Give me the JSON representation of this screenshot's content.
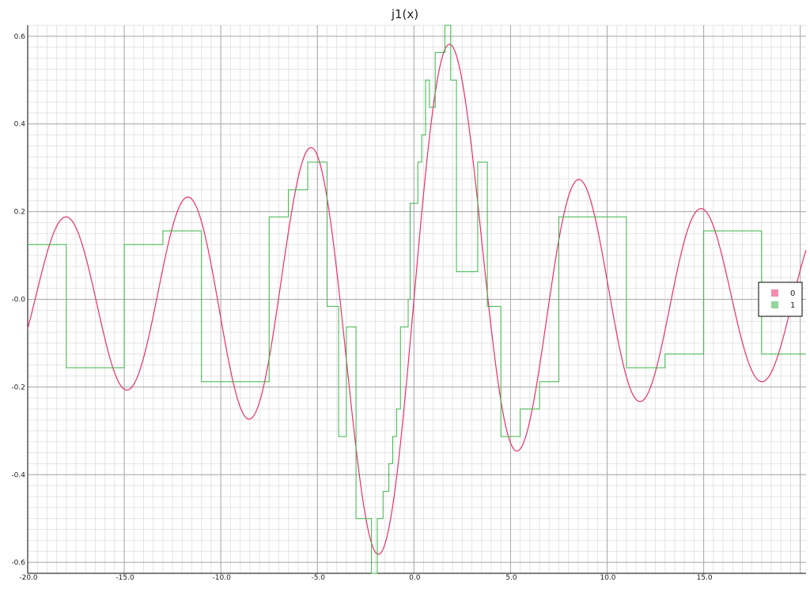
{
  "chart_data": {
    "type": "line",
    "title": "j1(x)",
    "xlabel": "",
    "ylabel": "",
    "xlim": [
      -20.0,
      20.3
    ],
    "ylim": [
      -0.625,
      0.625
    ],
    "x_ticks": [
      -20.0,
      -15.0,
      -10.0,
      -5.0,
      0.0,
      5.0,
      10.0,
      15.0
    ],
    "x_tick_labels": [
      "-20.0",
      "-15.0",
      "-10.0",
      "-5.0",
      "0.0",
      "5.0",
      "10.0",
      "15.0"
    ],
    "y_ticks": [
      -0.6,
      -0.4,
      -0.2,
      0.0,
      0.2,
      0.4,
      0.6
    ],
    "y_tick_labels": [
      "-0.6",
      "-0.4",
      "-0.2",
      "-0.0",
      "0.2",
      "0.4",
      "0.6"
    ],
    "grid": true,
    "legend_position": "right",
    "series": [
      {
        "name": "0",
        "color": "#e8306a",
        "style": "smooth",
        "function": "bessel_j1",
        "x_range": [
          -20.0,
          20.3
        ]
      },
      {
        "name": "1",
        "color": "#3cb54a",
        "style": "step",
        "x": [
          -20.0,
          -18.0,
          -18.0,
          -15.0,
          -15.0,
          -13.0,
          -13.0,
          -11.0,
          -11.0,
          -7.5,
          -7.5,
          -6.5,
          -6.5,
          -5.5,
          -5.5,
          -4.5,
          -4.5,
          -3.9,
          -3.9,
          -3.5,
          -3.5,
          -3.0,
          -3.0,
          -2.2,
          -2.2,
          -1.9,
          -1.9,
          -1.6,
          -1.6,
          -1.3,
          -1.3,
          -1.1,
          -1.1,
          -0.9,
          -0.9,
          -0.7,
          -0.7,
          -0.3,
          -0.3,
          -0.2,
          -0.2,
          0.2,
          0.2,
          0.4,
          0.4,
          0.6,
          0.6,
          0.8,
          0.8,
          1.1,
          1.1,
          1.6,
          1.6,
          1.9,
          1.9,
          2.2,
          2.2,
          3.3,
          3.3,
          3.8,
          3.8,
          4.5,
          4.5,
          5.5,
          5.5,
          6.5,
          6.5,
          7.5,
          7.5,
          11.0,
          11.0,
          13.0,
          13.0,
          15.0,
          15.0,
          18.0,
          18.0,
          20.3
        ],
        "y": [
          0.125,
          0.125,
          -0.156,
          -0.156,
          0.125,
          0.125,
          0.156,
          0.156,
          -0.188,
          -0.188,
          0.188,
          0.188,
          0.25,
          0.25,
          0.313,
          0.313,
          -0.016,
          -0.016,
          -0.313,
          -0.313,
          -0.063,
          -0.063,
          -0.5,
          -0.5,
          -0.625,
          -0.625,
          -0.5,
          -0.5,
          -0.438,
          -0.438,
          -0.375,
          -0.375,
          -0.313,
          -0.313,
          -0.25,
          -0.25,
          -0.063,
          -0.063,
          0.0,
          0.0,
          0.219,
          0.219,
          0.313,
          0.313,
          0.375,
          0.375,
          0.5,
          0.5,
          0.438,
          0.438,
          0.563,
          0.563,
          0.625,
          0.625,
          0.5,
          0.5,
          0.063,
          0.063,
          0.313,
          0.313,
          -0.016,
          -0.016,
          -0.313,
          -0.313,
          -0.25,
          -0.25,
          -0.188,
          -0.188,
          0.188,
          0.188,
          -0.156,
          -0.156,
          -0.125,
          -0.125,
          0.156,
          0.156,
          -0.125,
          -0.125
        ]
      }
    ]
  }
}
